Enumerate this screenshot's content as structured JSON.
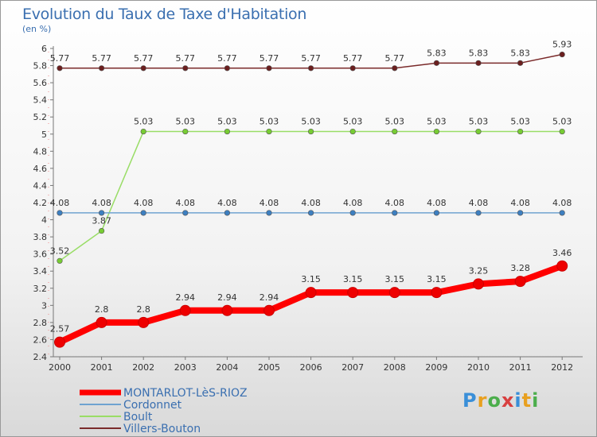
{
  "title": "Evolution du Taux de Taxe d'Habitation",
  "subtitle": "(en %)",
  "logo": {
    "text": "Proxiti",
    "colors": [
      "#3a8fd8",
      "#e8a020",
      "#4cae4c",
      "#d84040",
      "#3a8fd8",
      "#e8a020",
      "#4cae4c"
    ]
  },
  "chart_data": {
    "type": "line",
    "title": "Evolution du Taux de Taxe d'Habitation",
    "ylabel": "(en %)",
    "xlabel": "",
    "ylim": [
      2.4,
      6.0
    ],
    "y_ticks": [
      2.4,
      2.6,
      2.8,
      3.0,
      3.2,
      3.4,
      3.6,
      3.8,
      4.0,
      4.2,
      4.4,
      4.6,
      4.8,
      5.0,
      5.2,
      5.4,
      5.6,
      5.8,
      6.0
    ],
    "y_tick_labels": [
      "2.4",
      "2.6",
      "2.8",
      "3",
      "3.2",
      "3.4",
      "3.6",
      "3.8",
      "4",
      "4.2",
      "4.4",
      "4.6",
      "4.8",
      "5",
      "5.2",
      "5.4",
      "5.6",
      "5.8",
      "6"
    ],
    "x": [
      "2000",
      "2001",
      "2002",
      "2003",
      "2004",
      "2005",
      "2006",
      "2007",
      "2008",
      "2009",
      "2010",
      "2011",
      "2012"
    ],
    "series": [
      {
        "name": "Villers-Bouton",
        "color": "#7a2a2a",
        "marker_color": "#6b1f1f",
        "thick": false,
        "values": [
          5.77,
          5.77,
          5.77,
          5.77,
          5.77,
          5.77,
          5.77,
          5.77,
          5.77,
          5.83,
          5.83,
          5.83,
          5.93
        ],
        "labels": [
          "5.77",
          "5.77",
          "5.77",
          "5.77",
          "5.77",
          "5.77",
          "5.77",
          "5.77",
          "5.77",
          "5.83",
          "5.83",
          "5.83",
          "5.93"
        ]
      },
      {
        "name": "Boult",
        "color": "#99dd66",
        "marker_color": "#77cc33",
        "thick": false,
        "values": [
          3.52,
          3.87,
          5.03,
          5.03,
          5.03,
          5.03,
          5.03,
          5.03,
          5.03,
          5.03,
          5.03,
          5.03,
          5.03
        ],
        "labels": [
          "3.52",
          "3.87",
          "5.03",
          "5.03",
          "5.03",
          "5.03",
          "5.03",
          "5.03",
          "5.03",
          "5.03",
          "5.03",
          "5.03",
          "5.03"
        ]
      },
      {
        "name": "Cordonnet",
        "color": "#6fa3d0",
        "marker_color": "#3d7fc0",
        "thick": false,
        "values": [
          4.08,
          4.08,
          4.08,
          4.08,
          4.08,
          4.08,
          4.08,
          4.08,
          4.08,
          4.08,
          4.08,
          4.08,
          4.08
        ],
        "labels": [
          "4.08",
          "4.08",
          "4.08",
          "4.08",
          "4.08",
          "4.08",
          "4.08",
          "4.08",
          "4.08",
          "4.08",
          "4.08",
          "4.08",
          "4.08"
        ]
      },
      {
        "name": "MONTARLOT-LèS-RIOZ",
        "color": "#ff0000",
        "marker_color": "#ee0000",
        "thick": true,
        "values": [
          2.57,
          2.8,
          2.8,
          2.94,
          2.94,
          2.94,
          3.15,
          3.15,
          3.15,
          3.15,
          3.25,
          3.28,
          3.46
        ],
        "labels": [
          "2.57",
          "2.8",
          "2.8",
          "2.94",
          "2.94",
          "2.94",
          "3.15",
          "3.15",
          "3.15",
          "3.15",
          "3.25",
          "3.28",
          "3.46"
        ]
      }
    ],
    "legend": [
      "MONTARLOT-LèS-RIOZ",
      "Cordonnet",
      "Boult",
      "Villers-Bouton"
    ],
    "legend_position": "bottom-left",
    "grid": false
  }
}
